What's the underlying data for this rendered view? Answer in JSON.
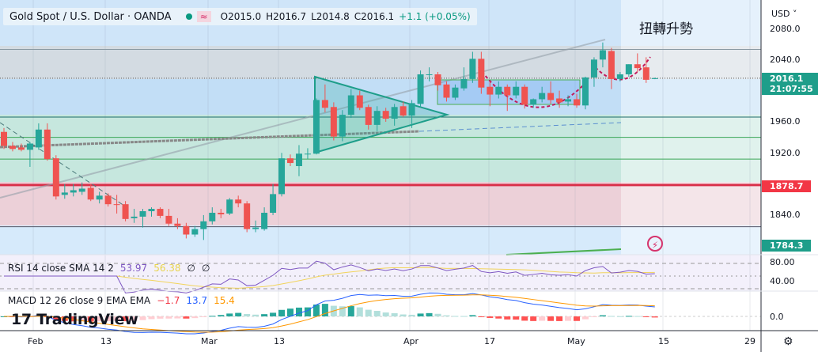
{
  "header": {
    "symbol_title": "Gold Spot / U.S. Dollar · OANDA",
    "open": "O2015.0",
    "high": "H2016.7",
    "low": "L2014.8",
    "close": "C2016.1",
    "change": "+1.1 (+0.05%)",
    "wave_icon": "≈"
  },
  "annotation_text": "扭轉升勢",
  "price_axis": {
    "currency": "USD ˅",
    "ticks": [
      "2080.0",
      "2040.0",
      "1960.0",
      "1920.0",
      "1840.0"
    ],
    "current_price": "2016.1",
    "countdown": "21:07:55",
    "red_level": "1878.7",
    "green_level": "1784.3"
  },
  "rsi": {
    "label": "RSI 14 close SMA 14 2",
    "value": "53.97",
    "sma": "56.38",
    "extra1": "∅",
    "extra2": "∅",
    "ticks": [
      "80.00",
      "40.00"
    ]
  },
  "macd": {
    "label": "MACD 12 26 close 9 EMA EMA",
    "hist": "−1.7",
    "macd": "13.7",
    "signal": "15.4",
    "ticks": [
      "0.0"
    ]
  },
  "time_axis": [
    "Feb",
    "13",
    "Mar",
    "13",
    "Apr",
    "17",
    "May",
    "15",
    "29"
  ],
  "logo": "17 TradingView",
  "colors": {
    "up": "#26a69a",
    "down": "#ef5350",
    "rsi": "#7e57c2",
    "rsi_sma": "#f2d45c",
    "macd": "#2962ff",
    "signal": "#ff9800"
  },
  "chart_data": {
    "type": "candlestick",
    "title": "Gold Spot / U.S. Dollar · OANDA",
    "ylim": [
      1780,
      2090
    ],
    "x_ticks": [
      "Feb",
      "13",
      "Mar",
      "13",
      "Apr",
      "17",
      "May",
      "15",
      "29"
    ],
    "y_ticks": [
      2080,
      2040,
      1960,
      1920,
      1840
    ],
    "ohlc": [
      [
        1947,
        1952,
        1925,
        1929
      ],
      [
        1929,
        1934,
        1922,
        1925
      ],
      [
        1927,
        1932,
        1922,
        1924
      ],
      [
        1924,
        1934,
        1902,
        1932
      ],
      [
        1927,
        1958,
        1924,
        1950
      ],
      [
        1950,
        1958,
        1910,
        1912
      ],
      [
        1913,
        1917,
        1860,
        1864
      ],
      [
        1866,
        1880,
        1861,
        1869
      ],
      [
        1869,
        1880,
        1864,
        1872
      ],
      [
        1870,
        1882,
        1866,
        1874
      ],
      [
        1875,
        1880,
        1858,
        1860
      ],
      [
        1860,
        1870,
        1855,
        1865
      ],
      [
        1865,
        1868,
        1851,
        1854
      ],
      [
        1854,
        1866,
        1842,
        1853
      ],
      [
        1854,
        1858,
        1832,
        1835
      ],
      [
        1836,
        1848,
        1830,
        1838
      ],
      [
        1838,
        1848,
        1824,
        1845
      ],
      [
        1845,
        1850,
        1838,
        1848
      ],
      [
        1848,
        1850,
        1836,
        1839
      ],
      [
        1839,
        1848,
        1826,
        1829
      ],
      [
        1829,
        1836,
        1822,
        1826
      ],
      [
        1826,
        1830,
        1810,
        1815
      ],
      [
        1815,
        1826,
        1812,
        1822
      ],
      [
        1822,
        1840,
        1808,
        1832
      ],
      [
        1832,
        1850,
        1828,
        1843
      ],
      [
        1843,
        1848,
        1836,
        1841
      ],
      [
        1842,
        1862,
        1840,
        1860
      ],
      [
        1860,
        1865,
        1850,
        1855
      ],
      [
        1855,
        1858,
        1818,
        1822
      ],
      [
        1822,
        1833,
        1818,
        1824
      ],
      [
        1822,
        1850,
        1820,
        1843
      ],
      [
        1843,
        1880,
        1840,
        1867
      ],
      [
        1867,
        1920,
        1864,
        1913
      ],
      [
        1913,
        1918,
        1903,
        1907
      ],
      [
        1903,
        1930,
        1890,
        1919
      ],
      [
        1919,
        1926,
        1912,
        1919
      ],
      [
        1919,
        1990,
        1918,
        1988
      ],
      [
        1988,
        2008,
        1972,
        1978
      ],
      [
        1979,
        1985,
        1936,
        1941
      ],
      [
        1941,
        1975,
        1935,
        1969
      ],
      [
        1969,
        2002,
        1965,
        1994
      ],
      [
        1994,
        2000,
        1975,
        1978
      ],
      [
        1979,
        1982,
        1950,
        1956
      ],
      [
        1956,
        1980,
        1948,
        1974
      ],
      [
        1974,
        1978,
        1960,
        1964
      ],
      [
        1964,
        1983,
        1955,
        1979
      ],
      [
        1980,
        1986,
        1966,
        1968
      ],
      [
        1968,
        1988,
        1952,
        1984
      ],
      [
        1983,
        2026,
        1978,
        2021
      ],
      [
        2021,
        2030,
        2012,
        2021
      ],
      [
        2021,
        2024,
        2000,
        2007
      ],
      [
        2008,
        2012,
        1986,
        1991
      ],
      [
        1991,
        2008,
        1988,
        2004
      ],
      [
        2003,
        2030,
        2000,
        2015
      ],
      [
        2015,
        2050,
        2010,
        2041
      ],
      [
        2041,
        2050,
        1996,
        2004
      ],
      [
        2005,
        2012,
        1980,
        1995
      ],
      [
        1995,
        2012,
        1990,
        2005
      ],
      [
        2005,
        2008,
        1974,
        1994
      ],
      [
        1994,
        2012,
        1990,
        2005
      ],
      [
        2005,
        2008,
        1977,
        1982
      ],
      [
        1982,
        1990,
        1978,
        1989
      ],
      [
        1989,
        2005,
        1985,
        1997
      ],
      [
        1997,
        2012,
        1983,
        1988
      ],
      [
        1990,
        2000,
        1978,
        1985
      ],
      [
        1986,
        1994,
        1980,
        1989
      ],
      [
        1989,
        1996,
        1978,
        1981
      ],
      [
        1981,
        2018,
        1976,
        2017
      ],
      [
        2017,
        2043,
        2005,
        2040
      ],
      [
        2040,
        2062,
        2030,
        2052
      ],
      [
        2051,
        2055,
        2002,
        2015
      ],
      [
        2015,
        2024,
        2012,
        2021
      ],
      [
        2021,
        2034,
        2018,
        2034
      ],
      [
        2034,
        2048,
        2024,
        2029
      ],
      [
        2030,
        2043,
        2010,
        2014
      ],
      [
        2015,
        2016.7,
        2014.8,
        2016.1
      ]
    ],
    "horizontal_levels": [
      2053,
      2016.1,
      1966,
      1940,
      1912,
      1878.7,
      1825
    ],
    "rsi_levels": [
      70,
      50,
      30
    ]
  }
}
